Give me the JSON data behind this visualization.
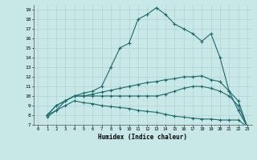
{
  "title": "",
  "xlabel": "Humidex (Indice chaleur)",
  "bg_color": "#c8e8e8",
  "line_color": "#1a6b6b",
  "grid_color": "#b0cccc",
  "xlim": [
    -0.5,
    23.5
  ],
  "ylim": [
    7,
    19.5
  ],
  "xticks": [
    0,
    1,
    2,
    3,
    4,
    5,
    6,
    7,
    8,
    9,
    10,
    11,
    12,
    13,
    14,
    15,
    16,
    17,
    18,
    19,
    20,
    21,
    22,
    23
  ],
  "yticks": [
    7,
    8,
    9,
    10,
    11,
    12,
    13,
    14,
    15,
    16,
    17,
    18,
    19
  ],
  "line1_x": [
    1,
    2,
    3,
    4,
    5,
    6,
    7,
    8,
    9,
    10,
    11,
    12,
    13,
    14,
    15,
    16,
    17,
    18,
    19,
    20,
    21,
    22,
    23
  ],
  "line1_y": [
    8.0,
    8.5,
    9.5,
    10.0,
    10.3,
    10.5,
    11.0,
    13.0,
    15.0,
    15.5,
    18.0,
    18.5,
    19.2,
    18.5,
    17.5,
    17.0,
    16.5,
    15.7,
    16.5,
    14.0,
    10.5,
    8.5,
    6.8
  ],
  "line2_x": [
    1,
    2,
    3,
    4,
    5,
    6,
    7,
    8,
    9,
    10,
    11,
    12,
    13,
    14,
    15,
    16,
    17,
    18,
    19,
    20,
    21,
    22,
    23
  ],
  "line2_y": [
    8.0,
    9.0,
    9.5,
    10.0,
    10.0,
    10.2,
    10.4,
    10.6,
    10.8,
    11.0,
    11.2,
    11.4,
    11.5,
    11.7,
    11.8,
    12.0,
    12.0,
    12.1,
    11.7,
    11.5,
    10.5,
    9.5,
    6.8
  ],
  "line3_x": [
    1,
    2,
    3,
    4,
    5,
    6,
    7,
    8,
    9,
    10,
    11,
    12,
    13,
    14,
    15,
    16,
    17,
    18,
    19,
    20,
    21,
    22,
    23
  ],
  "line3_y": [
    8.0,
    9.0,
    9.5,
    10.0,
    10.0,
    10.0,
    10.0,
    10.0,
    10.0,
    10.0,
    10.0,
    10.0,
    10.0,
    10.2,
    10.5,
    10.8,
    11.0,
    11.0,
    10.8,
    10.5,
    10.0,
    9.0,
    6.8
  ],
  "line4_x": [
    1,
    2,
    3,
    4,
    5,
    6,
    7,
    8,
    9,
    10,
    11,
    12,
    13,
    14,
    15,
    16,
    17,
    18,
    19,
    20,
    21,
    22,
    23
  ],
  "line4_y": [
    7.8,
    8.5,
    9.0,
    9.5,
    9.3,
    9.2,
    9.0,
    8.9,
    8.8,
    8.7,
    8.5,
    8.4,
    8.3,
    8.1,
    7.9,
    7.8,
    7.7,
    7.6,
    7.6,
    7.5,
    7.5,
    7.5,
    6.8
  ]
}
